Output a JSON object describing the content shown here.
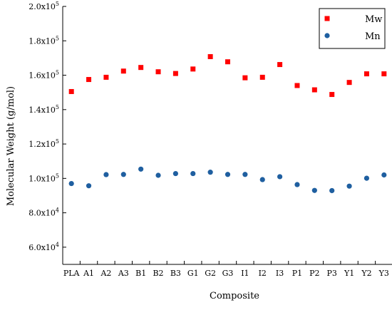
{
  "chart_data": {
    "type": "scatter",
    "title": "",
    "xlabel": "Composite",
    "ylabel": "Molecular Weight (g/mol)",
    "categories": [
      "PLA",
      "A1",
      "A2",
      "A3",
      "B1",
      "B2",
      "B3",
      "G1",
      "G2",
      "G3",
      "I1",
      "I2",
      "I3",
      "P1",
      "P2",
      "P3",
      "Y1",
      "Y2",
      "Y3"
    ],
    "ylim": [
      50000,
      200000
    ],
    "y_ticks": [
      {
        "value": 60000,
        "mantissa": "6.0x10",
        "exp": "4"
      },
      {
        "value": 80000,
        "mantissa": "8.0x10",
        "exp": "4"
      },
      {
        "value": 100000,
        "mantissa": "1.0x10",
        "exp": "5"
      },
      {
        "value": 120000,
        "mantissa": "1.2x10",
        "exp": "5"
      },
      {
        "value": 140000,
        "mantissa": "1.4x10",
        "exp": "5"
      },
      {
        "value": 160000,
        "mantissa": "1.6x10",
        "exp": "5"
      },
      {
        "value": 180000,
        "mantissa": "1.8x10",
        "exp": "5"
      },
      {
        "value": 200000,
        "mantissa": "2.0x10",
        "exp": "5"
      }
    ],
    "grid": false,
    "legend_position": "top-right",
    "series": [
      {
        "name": "Mw",
        "marker": "square",
        "color": "#ff0000",
        "values": [
          150500,
          157500,
          158800,
          162400,
          164500,
          162000,
          161000,
          163600,
          170800,
          167800,
          158500,
          158800,
          166200,
          154000,
          151500,
          148800,
          155800,
          160800,
          160800
        ]
      },
      {
        "name": "Mn",
        "marker": "circle",
        "color": "#1f5fa0",
        "values": [
          97000,
          95700,
          102200,
          102300,
          105400,
          101800,
          102800,
          102800,
          103600,
          102300,
          102300,
          99300,
          101000,
          96400,
          93000,
          92900,
          95500,
          100100,
          102000
        ]
      }
    ]
  }
}
